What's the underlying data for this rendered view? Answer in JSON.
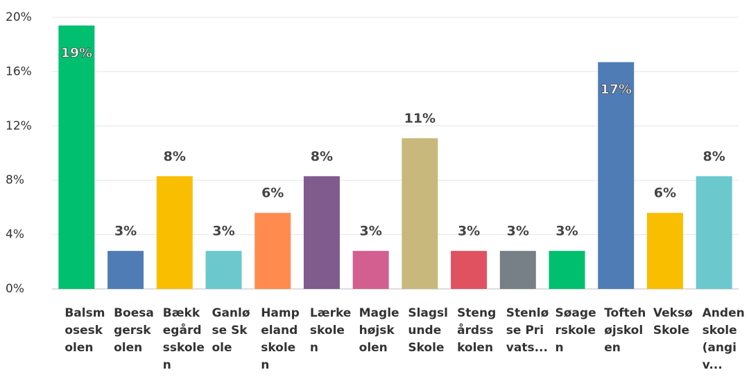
{
  "chart_data": {
    "type": "bar",
    "categories": [
      "Balsmoseskolen",
      "Boesagerskolen",
      "Bækkegårdsskolen",
      "Ganløse Skole",
      "Hampelandskolen",
      "Lærkeskolen",
      "Maglehøjskolen",
      "Slagslunde Skole",
      "Stengårdsskolen",
      "Stenløse Privats...",
      "Søagerskolen",
      "Toftehøjskolen",
      "Veksø Skole",
      "Anden skole (angiv..."
    ],
    "values": [
      19.4,
      2.8,
      8.3,
      2.8,
      5.6,
      8.3,
      2.8,
      11.1,
      2.8,
      2.8,
      2.8,
      16.7,
      5.6,
      8.3
    ],
    "value_labels": [
      "19%",
      "3%",
      "8%",
      "3%",
      "6%",
      "8%",
      "3%",
      "11%",
      "3%",
      "3%",
      "3%",
      "17%",
      "6%",
      "8%"
    ],
    "colors": [
      "#00bf6f",
      "#507cb6",
      "#f9be00",
      "#6bc8cd",
      "#ff8b4f",
      "#7f5b8e",
      "#d25f90",
      "#c8b87c",
      "#e05260",
      "#768086",
      "#00bf6f",
      "#507cb6",
      "#f9be00",
      "#6bc8cd"
    ],
    "ylim": [
      0,
      20
    ],
    "yticks": [
      {
        "value": 0,
        "label": "0%"
      },
      {
        "value": 4,
        "label": "4%"
      },
      {
        "value": 8,
        "label": "8%"
      },
      {
        "value": 12,
        "label": "12%"
      },
      {
        "value": 16,
        "label": "16%"
      },
      {
        "value": 20,
        "label": "20%"
      }
    ],
    "grid": true
  }
}
